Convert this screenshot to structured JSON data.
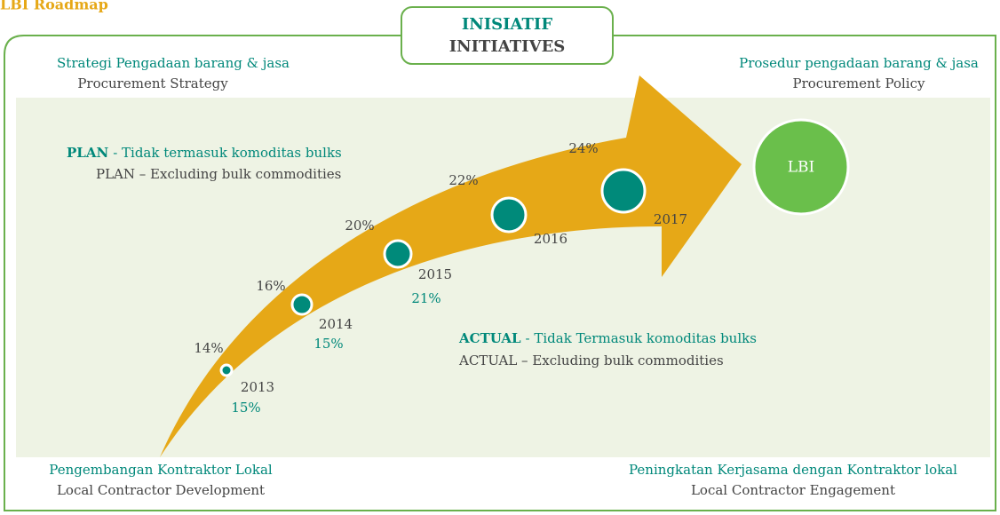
{
  "title": "LBI Roadmap",
  "center_box": {
    "line1": "INISIATIF",
    "line2": "INITIATIVES"
  },
  "corners": {
    "top_left": {
      "native": "Strategi Pengadaan barang & jasa",
      "english": "Procurement Strategy"
    },
    "top_right": {
      "native": "Prosedur pengadaan barang & jasa",
      "english": "Procurement Policy"
    },
    "bottom_left": {
      "native": "Pengembangan Kontraktor Lokal",
      "english": "Local Contractor Development"
    },
    "bottom_right": {
      "native": "Peningkatan Kerjasama dengan Kontraktor lokal",
      "english": "Local Contractor Engagement"
    }
  },
  "plan": {
    "keyword": "PLAN",
    "text": "- Tidak termasuk komoditas bulks",
    "english": "PLAN – Excluding bulk commodities"
  },
  "actual": {
    "keyword": "ACTUAL",
    "text": "- Tidak Termasuk komoditas bulks",
    "english": "ACTUAL – Excluding bulk commodities"
  },
  "milestones": [
    {
      "year": "2013",
      "plan": "14%",
      "actual": "15%"
    },
    {
      "year": "2014",
      "plan": "16%",
      "actual": "15%"
    },
    {
      "year": "2015",
      "plan": "20%",
      "actual": "21%"
    },
    {
      "year": "2016",
      "plan": "22%"
    },
    {
      "year": "2017",
      "plan": "24%"
    }
  ],
  "target": "LBI"
}
